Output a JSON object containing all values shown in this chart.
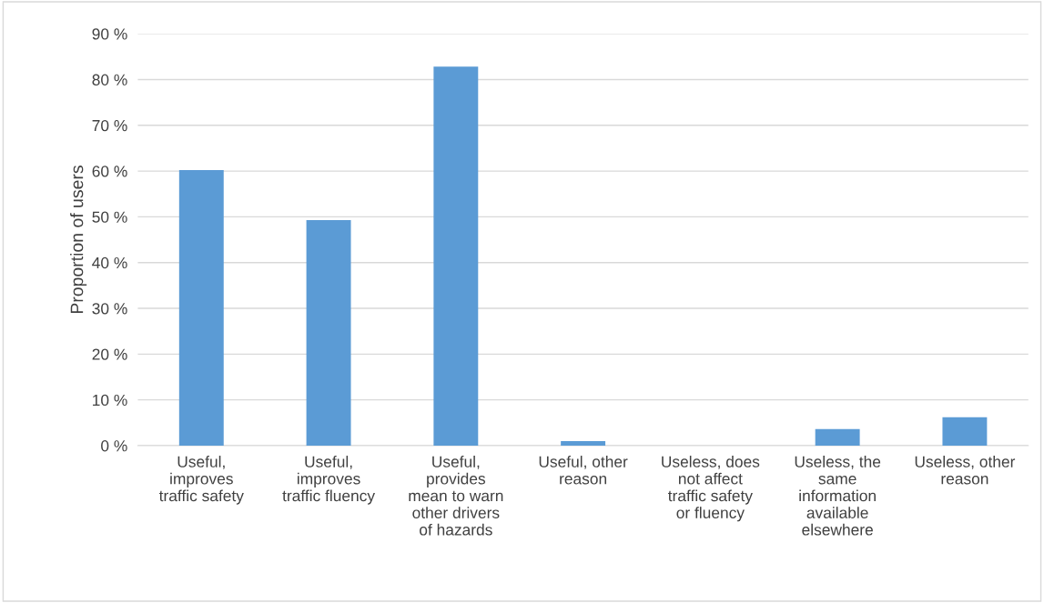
{
  "chart_data": {
    "type": "bar",
    "ylabel": "Proportion of users",
    "categories": [
      "Useful,\nimproves\ntraffic safety",
      "Useful,\nimproves\ntraffic fluency",
      "Useful,\nprovides\nmean to warn\nother drivers\nof hazards",
      "Useful, other\nreason",
      "Useless, does\nnot affect\ntraffic safety\nor fluency",
      "Useless, the\nsame\ninformation\navailable\nelsewhere",
      "Useless, other\nreason"
    ],
    "values": [
      60.2,
      49.3,
      82.8,
      1.0,
      0,
      3.6,
      6.2
    ],
    "color": "#5b9bd5",
    "ylim": [
      0,
      90
    ],
    "yticks": [
      {
        "value": 0,
        "label": "0 %"
      },
      {
        "value": 10,
        "label": "10 %"
      },
      {
        "value": 20,
        "label": "20 %"
      },
      {
        "value": 30,
        "label": "30 %"
      },
      {
        "value": 40,
        "label": "40 %"
      },
      {
        "value": 50,
        "label": "50 %"
      },
      {
        "value": 60,
        "label": "60 %"
      },
      {
        "value": 70,
        "label": "70 %"
      },
      {
        "value": 80,
        "label": "80 %"
      },
      {
        "value": 90,
        "label": "90 %"
      }
    ],
    "grid": "y"
  }
}
